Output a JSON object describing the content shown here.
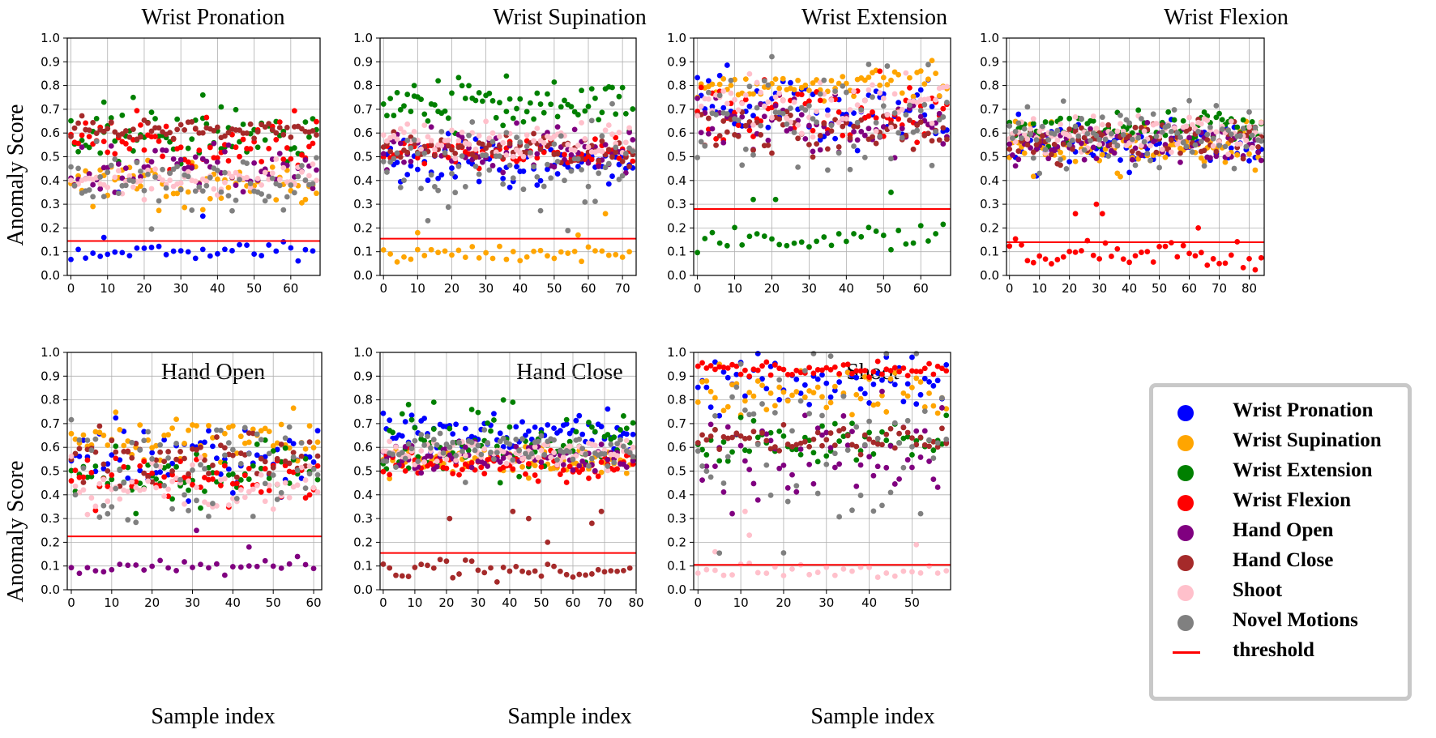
{
  "figure": {
    "y_axis_label": "Anomaly Score",
    "x_axis_label": "Sample index"
  },
  "classes": [
    {
      "key": "wrist_pronation",
      "label": "Wrist Pronation",
      "color": "#0000ff"
    },
    {
      "key": "wrist_supination",
      "label": "Wrist Supination",
      "color": "#ffa500"
    },
    {
      "key": "wrist_extension",
      "label": "Wrist Extension",
      "color": "#008000"
    },
    {
      "key": "wrist_flexion",
      "label": "Wrist Flexion",
      "color": "#ff0000"
    },
    {
      "key": "hand_open",
      "label": "Hand Open",
      "color": "#800080"
    },
    {
      "key": "hand_close",
      "label": "Hand Close",
      "color": "#a52a2a"
    },
    {
      "key": "shoot",
      "label": "Shoot",
      "color": "#ffc0cb"
    },
    {
      "key": "novel_motions",
      "label": "Novel Motions",
      "color": "#808080"
    }
  ],
  "legend": {
    "threshold_label": "threshold",
    "threshold_color": "#ff0000",
    "placement": "bottom-right"
  },
  "chart_data": [
    {
      "type": "scatter",
      "title": "Wrist Pronation",
      "target_class": "wrist_pronation",
      "xlim": [
        -1,
        68
      ],
      "ylim": [
        0,
        1.0
      ],
      "xticks": [
        0,
        10,
        20,
        30,
        40,
        50,
        60
      ],
      "yticks": [
        0.0,
        0.1,
        0.2,
        0.3,
        0.4,
        0.5,
        0.6,
        0.7,
        0.8,
        0.9,
        1.0
      ],
      "n_samples": 68,
      "threshold": 0.145,
      "grid": true,
      "series": [
        {
          "name": "Wrist Pronation",
          "center": 0.1,
          "spread": 0.02,
          "outliers": [
            {
              "x": 9,
              "y": 0.16
            },
            {
              "x": 13,
              "y": 0.35
            },
            {
              "x": 36,
              "y": 0.25
            }
          ]
        },
        {
          "name": "Wrist Supination",
          "center": 0.39,
          "spread": 0.05
        },
        {
          "name": "Wrist Extension",
          "center": 0.58,
          "spread": 0.05,
          "outliers": [
            {
              "x": 9,
              "y": 0.73
            },
            {
              "x": 17,
              "y": 0.75
            },
            {
              "x": 36,
              "y": 0.76
            },
            {
              "x": 41,
              "y": 0.71
            }
          ]
        },
        {
          "name": "Wrist Flexion",
          "center": 0.55,
          "spread": 0.05
        },
        {
          "name": "Hand Open",
          "center": 0.45,
          "spread": 0.05
        },
        {
          "name": "Hand Close",
          "center": 0.61,
          "spread": 0.02
        },
        {
          "name": "Shoot",
          "center": 0.4,
          "spread": 0.04
        },
        {
          "name": "Novel Motions",
          "center": 0.39,
          "spread": 0.06
        }
      ]
    },
    {
      "type": "scatter",
      "title": "Wrist Supination",
      "target_class": "wrist_supination",
      "xlim": [
        -1,
        74
      ],
      "ylim": [
        0,
        1.0
      ],
      "xticks": [
        0,
        10,
        20,
        30,
        40,
        50,
        60,
        70
      ],
      "yticks": [
        0.0,
        0.1,
        0.2,
        0.3,
        0.4,
        0.5,
        0.6,
        0.7,
        0.8,
        0.9,
        1.0
      ],
      "n_samples": 74,
      "threshold": 0.155,
      "grid": true,
      "series": [
        {
          "name": "Wrist Pronation",
          "center": 0.47,
          "spread": 0.06
        },
        {
          "name": "Wrist Supination",
          "center": 0.09,
          "spread": 0.02,
          "outliers": [
            {
              "x": 10,
              "y": 0.18
            },
            {
              "x": 57,
              "y": 0.17
            },
            {
              "x": 65,
              "y": 0.26
            }
          ]
        },
        {
          "name": "Wrist Extension",
          "center": 0.72,
          "spread": 0.05,
          "outliers": [
            {
              "x": 9,
              "y": 0.8
            },
            {
              "x": 16,
              "y": 0.82
            },
            {
              "x": 36,
              "y": 0.84
            }
          ]
        },
        {
          "name": "Wrist Flexion",
          "center": 0.52,
          "spread": 0.03
        },
        {
          "name": "Hand Open",
          "center": 0.53,
          "spread": 0.04
        },
        {
          "name": "Hand Close",
          "center": 0.53,
          "spread": 0.03
        },
        {
          "name": "Shoot",
          "center": 0.57,
          "spread": 0.04
        },
        {
          "name": "Novel Motions",
          "center": 0.48,
          "spread": 0.1
        }
      ]
    },
    {
      "type": "scatter",
      "title": "Wrist Extension",
      "target_class": "wrist_extension",
      "xlim": [
        -1,
        68
      ],
      "ylim": [
        0,
        1.0
      ],
      "xticks": [
        0,
        10,
        20,
        30,
        40,
        50,
        60
      ],
      "yticks": [
        0.0,
        0.1,
        0.2,
        0.3,
        0.4,
        0.5,
        0.6,
        0.7,
        0.8,
        0.9,
        1.0
      ],
      "n_samples": 68,
      "threshold": 0.28,
      "grid": true,
      "series": [
        {
          "name": "Wrist Pronation",
          "center": 0.7,
          "spread": 0.07
        },
        {
          "name": "Wrist Supination",
          "center": 0.8,
          "spread": 0.04
        },
        {
          "name": "Wrist Extension",
          "center": 0.16,
          "spread": 0.03,
          "outliers": [
            {
              "x": 15,
              "y": 0.32
            },
            {
              "x": 21,
              "y": 0.32
            },
            {
              "x": 52,
              "y": 0.35
            }
          ]
        },
        {
          "name": "Wrist Flexion",
          "center": 0.7,
          "spread": 0.07
        },
        {
          "name": "Hand Open",
          "center": 0.64,
          "spread": 0.06
        },
        {
          "name": "Hand Close",
          "center": 0.62,
          "spread": 0.05
        },
        {
          "name": "Shoot",
          "center": 0.72,
          "spread": 0.05
        },
        {
          "name": "Novel Motions",
          "center": 0.68,
          "spread": 0.12
        }
      ]
    },
    {
      "type": "scatter",
      "title": "Wrist Flexion",
      "target_class": "wrist_flexion",
      "xlim": [
        -1,
        85
      ],
      "ylim": [
        0,
        1.0
      ],
      "xticks": [
        0,
        10,
        20,
        30,
        40,
        50,
        60,
        70,
        80
      ],
      "yticks": [
        0.0,
        0.1,
        0.2,
        0.3,
        0.4,
        0.5,
        0.6,
        0.7,
        0.8,
        0.9,
        1.0
      ],
      "n_samples": 85,
      "threshold": 0.14,
      "grid": true,
      "series": [
        {
          "name": "Wrist Pronation",
          "center": 0.56,
          "spread": 0.05
        },
        {
          "name": "Wrist Supination",
          "center": 0.54,
          "spread": 0.05
        },
        {
          "name": "Wrist Extension",
          "center": 0.62,
          "spread": 0.04
        },
        {
          "name": "Wrist Flexion",
          "center": 0.09,
          "spread": 0.03,
          "outliers": [
            {
              "x": 22,
              "y": 0.26
            },
            {
              "x": 29,
              "y": 0.3
            },
            {
              "x": 31,
              "y": 0.26
            },
            {
              "x": 63,
              "y": 0.2
            }
          ]
        },
        {
          "name": "Hand Open",
          "center": 0.55,
          "spread": 0.04
        },
        {
          "name": "Hand Close",
          "center": 0.57,
          "spread": 0.04
        },
        {
          "name": "Shoot",
          "center": 0.6,
          "spread": 0.04
        },
        {
          "name": "Novel Motions",
          "center": 0.6,
          "spread": 0.06
        }
      ]
    },
    {
      "type": "scatter",
      "title": "Hand Open",
      "target_class": "hand_open",
      "xlim": [
        -1,
        62
      ],
      "ylim": [
        0,
        1.0
      ],
      "xticks": [
        0,
        10,
        20,
        30,
        40,
        50,
        60
      ],
      "yticks": [
        0.0,
        0.1,
        0.2,
        0.3,
        0.4,
        0.5,
        0.6,
        0.7,
        0.8,
        0.9,
        1.0
      ],
      "n_samples": 62,
      "threshold": 0.225,
      "grid": true,
      "series": [
        {
          "name": "Wrist Pronation",
          "center": 0.55,
          "spread": 0.07
        },
        {
          "name": "Wrist Supination",
          "center": 0.63,
          "spread": 0.05
        },
        {
          "name": "Wrist Extension",
          "center": 0.48,
          "spread": 0.06
        },
        {
          "name": "Wrist Flexion",
          "center": 0.47,
          "spread": 0.05
        },
        {
          "name": "Hand Open",
          "center": 0.1,
          "spread": 0.02,
          "outliers": [
            {
              "x": 31,
              "y": 0.25
            },
            {
              "x": 44,
              "y": 0.18
            }
          ]
        },
        {
          "name": "Hand Close",
          "center": 0.55,
          "spread": 0.05
        },
        {
          "name": "Shoot",
          "center": 0.43,
          "spread": 0.05
        },
        {
          "name": "Novel Motions",
          "center": 0.5,
          "spread": 0.14
        }
      ]
    },
    {
      "type": "scatter",
      "title": "Hand Close",
      "target_class": "hand_close",
      "xlim": [
        -1,
        80
      ],
      "ylim": [
        0,
        1.0
      ],
      "xticks": [
        0,
        10,
        20,
        30,
        40,
        50,
        60,
        70,
        80
      ],
      "yticks": [
        0.0,
        0.1,
        0.2,
        0.3,
        0.4,
        0.5,
        0.6,
        0.7,
        0.8,
        0.9,
        1.0
      ],
      "n_samples": 80,
      "threshold": 0.155,
      "grid": true,
      "series": [
        {
          "name": "Wrist Pronation",
          "center": 0.67,
          "spread": 0.04
        },
        {
          "name": "Wrist Supination",
          "center": 0.54,
          "spread": 0.03
        },
        {
          "name": "Wrist Extension",
          "center": 0.62,
          "spread": 0.06,
          "outliers": [
            {
              "x": 8,
              "y": 0.78
            },
            {
              "x": 16,
              "y": 0.79
            },
            {
              "x": 38,
              "y": 0.8
            },
            {
              "x": 41,
              "y": 0.79
            }
          ]
        },
        {
          "name": "Wrist Flexion",
          "center": 0.53,
          "spread": 0.03
        },
        {
          "name": "Hand Open",
          "center": 0.56,
          "spread": 0.03
        },
        {
          "name": "Hand Close",
          "center": 0.08,
          "spread": 0.02,
          "outliers": [
            {
              "x": 21,
              "y": 0.3
            },
            {
              "x": 41,
              "y": 0.33
            },
            {
              "x": 46,
              "y": 0.3
            },
            {
              "x": 52,
              "y": 0.2
            },
            {
              "x": 66,
              "y": 0.28
            },
            {
              "x": 69,
              "y": 0.33
            }
          ]
        },
        {
          "name": "Shoot",
          "center": 0.58,
          "spread": 0.03
        },
        {
          "name": "Novel Motions",
          "center": 0.59,
          "spread": 0.04
        }
      ]
    },
    {
      "type": "scatter",
      "title": "Shoot",
      "target_class": "shoot",
      "xlim": [
        -1,
        59
      ],
      "ylim": [
        0,
        1.0
      ],
      "xticks": [
        0,
        10,
        20,
        30,
        40,
        50
      ],
      "yticks": [
        0.0,
        0.1,
        0.2,
        0.3,
        0.4,
        0.5,
        0.6,
        0.7,
        0.8,
        0.9,
        1.0
      ],
      "n_samples": 59,
      "threshold": 0.105,
      "grid": true,
      "series": [
        {
          "name": "Wrist Pronation",
          "center": 0.88,
          "spread": 0.06
        },
        {
          "name": "Wrist Supination",
          "center": 0.84,
          "spread": 0.05
        },
        {
          "name": "Wrist Extension",
          "center": 0.62,
          "spread": 0.05
        },
        {
          "name": "Wrist Flexion",
          "center": 0.93,
          "spread": 0.015
        },
        {
          "name": "Hand Open",
          "center": 0.55,
          "spread": 0.12
        },
        {
          "name": "Hand Close",
          "center": 0.63,
          "spread": 0.03
        },
        {
          "name": "Shoot",
          "center": 0.08,
          "spread": 0.015,
          "outliers": [
            {
              "x": 4,
              "y": 0.16
            },
            {
              "x": 11,
              "y": 0.33
            },
            {
              "x": 12,
              "y": 0.23
            },
            {
              "x": 51,
              "y": 0.19
            }
          ]
        },
        {
          "name": "Novel Motions",
          "center": 0.6,
          "spread": 0.22
        }
      ]
    }
  ]
}
